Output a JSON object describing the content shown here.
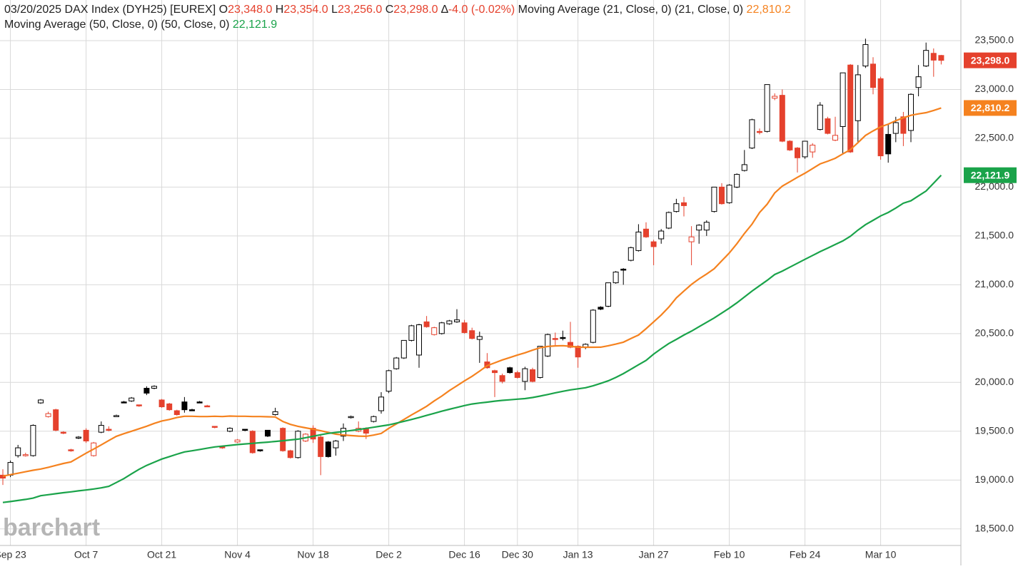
{
  "header": {
    "date": "03/20/2025",
    "symbol": "DAX Index (DYH25) [EUREX]",
    "open": {
      "label": "O",
      "value": "23,348.0"
    },
    "high": {
      "label": "H",
      "value": "23,354.0"
    },
    "low": {
      "label": "L",
      "value": "23,256.0"
    },
    "close": {
      "label": "C",
      "value": "23,298.0"
    },
    "change": {
      "label": "∆",
      "value": "-4.0 (-0.02%)"
    }
  },
  "watermark": "barchart",
  "chart_data": {
    "type": "candlestick",
    "up_color": "#000000",
    "down_color": "#e5412d",
    "grid": true,
    "ylim": [
      18330,
      23916
    ],
    "yticks": [
      {
        "value": 18500,
        "label": "18,500.0"
      },
      {
        "value": 19000,
        "label": "19,000.0"
      },
      {
        "value": 19500,
        "label": "19,500.0"
      },
      {
        "value": 20000,
        "label": "20,000.0"
      },
      {
        "value": 20500,
        "label": "20,500.0"
      },
      {
        "value": 21000,
        "label": "21,000.0"
      },
      {
        "value": 21500,
        "label": "21,500.0"
      },
      {
        "value": 22000,
        "label": "22,000.0"
      },
      {
        "value": 22500,
        "label": "22,500.0"
      },
      {
        "value": 23000,
        "label": "23,000.0"
      },
      {
        "value": 23500,
        "label": "23,500.0"
      }
    ],
    "categories": [
      null,
      "Sep 23",
      null,
      null,
      null,
      null,
      null,
      null,
      null,
      null,
      null,
      "Oct 7",
      null,
      null,
      null,
      null,
      null,
      null,
      null,
      null,
      null,
      "Oct 21",
      null,
      null,
      null,
      null,
      null,
      null,
      null,
      null,
      null,
      "Nov 4",
      null,
      null,
      null,
      null,
      null,
      null,
      null,
      null,
      null,
      "Nov 18",
      null,
      null,
      null,
      null,
      null,
      null,
      null,
      null,
      null,
      "Dec 2",
      null,
      null,
      null,
      null,
      null,
      null,
      null,
      null,
      null,
      "Dec 16",
      null,
      null,
      null,
      null,
      null,
      null,
      "Dec 30",
      null,
      null,
      null,
      null,
      null,
      null,
      null,
      "Jan 13",
      null,
      null,
      null,
      null,
      null,
      null,
      null,
      null,
      null,
      "Jan 27",
      null,
      null,
      null,
      null,
      null,
      null,
      null,
      null,
      null,
      "Feb 10",
      null,
      null,
      null,
      null,
      null,
      null,
      null,
      null,
      null,
      "Feb 24",
      null,
      null,
      null,
      null,
      null,
      null,
      null,
      null,
      null,
      "Mar 10",
      null,
      null,
      null,
      null,
      null,
      null,
      null,
      null
    ],
    "open": [
      19050,
      19050,
      19250,
      19250,
      19250,
      19790,
      19650,
      19720,
      19490,
      19310,
      19430,
      19510,
      19250,
      19490,
      19520,
      19650,
      19800,
      19810,
      19770,
      19940,
      19940,
      19820,
      19780,
      19710,
      19800,
      19720,
      19800,
      19760,
      19550,
      19340,
      19500,
      19390,
      19520,
      19500,
      19310,
      19510,
      19670,
      19530,
      19300,
      19230,
      19400,
      19530,
      19440,
      19390,
      19330,
      19450,
      19640,
      19500,
      19530,
      19600,
      19710,
      19910,
      20140,
      20250,
      20430,
      20280,
      20620,
      20490,
      20500,
      20600,
      20620,
      20610,
      20530,
      20440,
      20210,
      20120,
      20070,
      20150,
      20100,
      20010,
      20130,
      20050,
      20270,
      20450,
      20460,
      20410,
      20370,
      20360,
      20410,
      20770,
      20780,
      21020,
      21160,
      21250,
      21350,
      21570,
      21440,
      21470,
      21580,
      21750,
      21840,
      21440,
      21560,
      21560,
      21750,
      22000,
      21840,
      22000,
      22170,
      22400,
      22570,
      22570,
      22910,
      22940,
      22470,
      22400,
      22310,
      22360,
      22590,
      22700,
      22480,
      22620,
      23250,
      22680,
      23240,
      23260,
      23110,
      22540,
      22550,
      22720,
      22580,
      23020,
      23240,
      23370,
      23348
    ],
    "high": [
      19110,
      19200,
      19360,
      19280,
      19570,
      19830,
      19700,
      19730,
      19500,
      19320,
      19450,
      19530,
      19390,
      19600,
      19550,
      19670,
      19810,
      19850,
      19770,
      19960,
      19970,
      19830,
      19790,
      19720,
      19850,
      19730,
      19810,
      19770,
      19550,
      19340,
      19540,
      19420,
      19520,
      19510,
      19310,
      19510,
      19740,
      19540,
      19310,
      19510,
      19480,
      19560,
      19460,
      19400,
      19410,
      19580,
      19660,
      19600,
      19540,
      19660,
      19900,
      20130,
      20260,
      20430,
      20590,
      20600,
      20680,
      20570,
      20620,
      20640,
      20750,
      20640,
      20560,
      20520,
      20300,
      20130,
      20090,
      20160,
      20120,
      20160,
      20150,
      20370,
      20500,
      20510,
      20530,
      20620,
      20380,
      20400,
      20750,
      20780,
      21020,
      21140,
      21170,
      21390,
      21620,
      21640,
      21460,
      21570,
      21750,
      21880,
      21900,
      21600,
      21620,
      21660,
      22000,
      22040,
      22030,
      22140,
      22380,
      22700,
      22600,
      23050,
      22960,
      23000,
      22480,
      22410,
      22470,
      22450,
      22870,
      22720,
      22720,
      23170,
      23260,
      23250,
      23520,
      23330,
      23130,
      22640,
      22720,
      22770,
      22960,
      23250,
      23480,
      23420,
      23354
    ],
    "low": [
      18950,
      19030,
      19230,
      19240,
      19240,
      19780,
      19640,
      19500,
      19470,
      19290,
      19420,
      19380,
      19240,
      19480,
      19500,
      19650,
      19790,
      19800,
      19750,
      19870,
      19930,
      19740,
      19710,
      19660,
      19690,
      19710,
      19790,
      19750,
      19530,
      19320,
      19490,
      19380,
      19500,
      19270,
      19290,
      19440,
      19660,
      19290,
      19220,
      19220,
      19390,
      19380,
      19050,
      19230,
      19250,
      19400,
      19630,
      19490,
      19420,
      19590,
      19680,
      19890,
      20130,
      20240,
      20420,
      20150,
      20560,
      20480,
      20490,
      20590,
      20610,
      20500,
      20440,
      20200,
      20140,
      19850,
      19990,
      20090,
      20040,
      19920,
      20000,
      20040,
      20260,
      20380,
      20430,
      20350,
      20150,
      20340,
      20400,
      20740,
      20770,
      21010,
      21000,
      21240,
      21340,
      21480,
      21200,
      21420,
      21570,
      21740,
      21700,
      21200,
      21420,
      21500,
      21740,
      21820,
      21830,
      21990,
      22160,
      22390,
      22540,
      22560,
      22890,
      22460,
      22370,
      22150,
      22290,
      22300,
      22580,
      22540,
      22470,
      22340,
      22350,
      22460,
      23220,
      22950,
      22280,
      22250,
      22460,
      22420,
      22460,
      22930,
      23230,
      23130,
      23256
    ],
    "close": [
      19020,
      19180,
      19330,
      19260,
      19560,
      19820,
      19680,
      19510,
      19480,
      19300,
      19440,
      19400,
      19380,
      19560,
      19510,
      19660,
      19800,
      19840,
      19760,
      19890,
      19960,
      19750,
      19720,
      19670,
      19720,
      19720,
      19800,
      19750,
      19540,
      19330,
      19530,
      19410,
      19510,
      19280,
      19300,
      19450,
      19700,
      19300,
      19230,
      19500,
      19470,
      19420,
      19240,
      19240,
      19400,
      19530,
      19650,
      19530,
      19480,
      19650,
      19850,
      20120,
      20250,
      20430,
      20580,
      20590,
      20570,
      20560,
      20610,
      20630,
      20640,
      20510,
      20450,
      20470,
      20150,
      20100,
      20010,
      20100,
      20050,
      20140,
      20010,
      20370,
      20490,
      20450,
      20460,
      20360,
      20260,
      20390,
      20740,
      20750,
      21020,
      21130,
      21160,
      21380,
      21540,
      21490,
      21390,
      21550,
      21740,
      21830,
      21810,
      21490,
      21610,
      21640,
      22000,
      21830,
      22020,
      22130,
      22230,
      22690,
      22560,
      23050,
      22930,
      22470,
      22380,
      22300,
      22470,
      22430,
      22840,
      22550,
      22530,
      23170,
      22360,
      23150,
      23460,
      23020,
      22320,
      22340,
      22660,
      22550,
      22950,
      23130,
      23400,
      23300,
      23298
    ],
    "series": [
      {
        "name": "Moving Average (21, Close, 0)",
        "params": "(21, Close, 0)",
        "last_label": "22,810.2",
        "color": "#f5821f",
        "values": [
          19040,
          19055,
          19070,
          19085,
          19100,
          19113,
          19130,
          19150,
          19170,
          19186,
          19230,
          19275,
          19317,
          19360,
          19405,
          19448,
          19475,
          19500,
          19525,
          19551,
          19580,
          19605,
          19620,
          19640,
          19653,
          19653,
          19650,
          19650,
          19653,
          19650,
          19655,
          19653,
          19653,
          19650,
          19650,
          19648,
          19646,
          19600,
          19570,
          19550,
          19535,
          19521,
          19505,
          19488,
          19470,
          19462,
          19455,
          19450,
          19448,
          19460,
          19477,
          19530,
          19575,
          19620,
          19667,
          19710,
          19755,
          19810,
          19860,
          19916,
          19965,
          20015,
          20062,
          20115,
          20171,
          20200,
          20230,
          20255,
          20280,
          20303,
          20330,
          20355,
          20368,
          20374,
          20376,
          20370,
          20361,
          20360,
          20360,
          20361,
          20375,
          20392,
          20412,
          20450,
          20485,
          20550,
          20620,
          20690,
          20770,
          20865,
          20935,
          21003,
          21060,
          21110,
          21164,
          21245,
          21325,
          21420,
          21525,
          21620,
          21740,
          21825,
          21940,
          22010,
          22055,
          22100,
          22142,
          22190,
          22237,
          22265,
          22295,
          22340,
          22383,
          22455,
          22529,
          22575,
          22617,
          22645,
          22680,
          22710,
          22735,
          22750,
          22762,
          22785,
          22810.2
        ]
      },
      {
        "name": "Moving Average (50, Close, 0)",
        "params": "(50, Close, 0)",
        "last_label": "22,121.9",
        "color": "#1aa34a",
        "values": [
          18770,
          18780,
          18791,
          18802,
          18815,
          18840,
          18850,
          18860,
          18870,
          18879,
          18889,
          18898,
          18908,
          18920,
          18935,
          18975,
          19015,
          19063,
          19110,
          19150,
          19183,
          19215,
          19240,
          19265,
          19288,
          19300,
          19313,
          19326,
          19339,
          19347,
          19355,
          19363,
          19370,
          19376,
          19382,
          19388,
          19395,
          19403,
          19411,
          19419,
          19433,
          19449,
          19464,
          19478,
          19487,
          19497,
          19507,
          19517,
          19529,
          19541,
          19553,
          19565,
          19583,
          19601,
          19620,
          19640,
          19662,
          19683,
          19705,
          19725,
          19744,
          19763,
          19779,
          19789,
          19798,
          19808,
          19816,
          19822,
          19828,
          19834,
          19845,
          19860,
          19876,
          19893,
          19909,
          19923,
          19934,
          19945,
          19965,
          19990,
          20016,
          20050,
          20090,
          20135,
          20180,
          20225,
          20290,
          20345,
          20398,
          20440,
          20485,
          20525,
          20570,
          20615,
          20660,
          20710,
          20760,
          20815,
          20875,
          20935,
          20990,
          21045,
          21105,
          21140,
          21180,
          21220,
          21260,
          21300,
          21339,
          21375,
          21412,
          21449,
          21497,
          21560,
          21615,
          21660,
          21705,
          21740,
          21785,
          21835,
          21860,
          21910,
          21960,
          22040,
          22121.9
        ]
      }
    ]
  }
}
